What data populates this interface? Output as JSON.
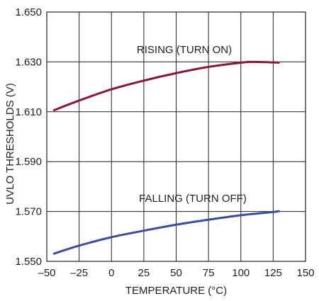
{
  "chart_data": {
    "type": "line",
    "title": "",
    "xlabel": "TEMPERATURE (°C)",
    "ylabel": "UVLO THRESHOLDS (V)",
    "xlim": [
      -50,
      150
    ],
    "ylim": [
      1.55,
      1.65
    ],
    "x_ticks": [
      -50,
      -25,
      0,
      25,
      50,
      75,
      100,
      125,
      150
    ],
    "x_tick_labels": [
      "–50",
      "–25",
      "0",
      "25",
      "50",
      "75",
      "100",
      "125",
      "150"
    ],
    "y_ticks": [
      1.55,
      1.57,
      1.59,
      1.61,
      1.63,
      1.65
    ],
    "y_tick_labels": [
      "1.550",
      "1.570",
      "1.590",
      "1.610",
      "1.630",
      "1.650"
    ],
    "grid": true,
    "legend": "inline",
    "series": [
      {
        "label": "RISING (TURN ON)",
        "color": "#8b1538",
        "x": [
          -45,
          -25,
          0,
          25,
          50,
          75,
          100,
          110,
          125,
          130
        ],
        "y": [
          1.6105,
          1.6145,
          1.619,
          1.6225,
          1.6255,
          1.628,
          1.6297,
          1.63,
          1.6298,
          1.6297
        ]
      },
      {
        "label": "FALLING (TURN OFF)",
        "color": "#3a4e9c",
        "x": [
          -45,
          -25,
          0,
          25,
          50,
          75,
          100,
          125,
          130
        ],
        "y": [
          1.553,
          1.5563,
          1.5597,
          1.5623,
          1.5647,
          1.5667,
          1.5685,
          1.5698,
          1.5702
        ]
      }
    ]
  }
}
